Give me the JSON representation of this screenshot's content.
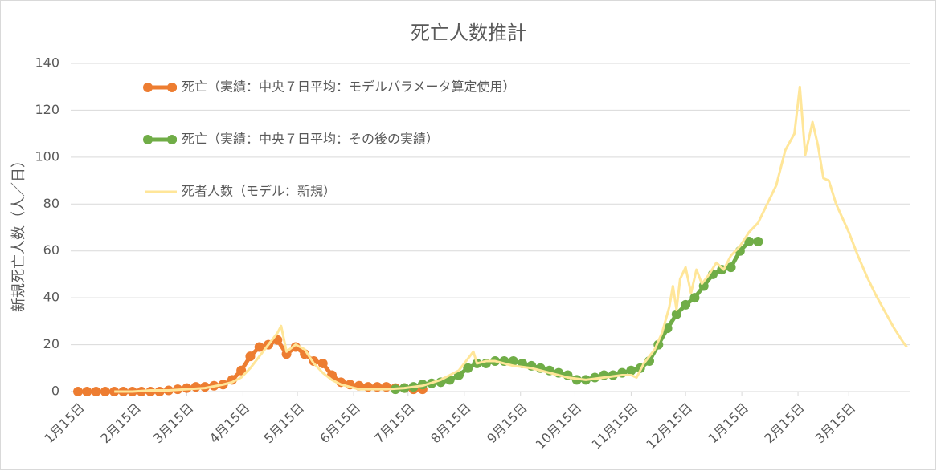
{
  "chart_data": {
    "type": "line",
    "title": "死亡人数推計",
    "y_label": "新規死亡人数（人／日）",
    "xlim": [
      -4,
      459
    ],
    "ylim": [
      0,
      140
    ],
    "yticks": [
      0,
      20,
      40,
      60,
      80,
      100,
      120,
      140
    ],
    "xticks": [
      {
        "value": 0,
        "label": "1月15日"
      },
      {
        "value": 31,
        "label": "2月15日"
      },
      {
        "value": 60,
        "label": "3月15日"
      },
      {
        "value": 91,
        "label": "4月15日"
      },
      {
        "value": 121,
        "label": "5月15日"
      },
      {
        "value": 152,
        "label": "6月15日"
      },
      {
        "value": 182,
        "label": "7月15日"
      },
      {
        "value": 213,
        "label": "8月15日"
      },
      {
        "value": 244,
        "label": "9月15日"
      },
      {
        "value": 274,
        "label": "10月15日"
      },
      {
        "value": 305,
        "label": "11月15日"
      },
      {
        "value": 335,
        "label": "12月15日"
      },
      {
        "value": 366,
        "label": "1月15日"
      },
      {
        "value": 397,
        "label": "2月15日"
      },
      {
        "value": 425,
        "label": "3月15日"
      }
    ],
    "grid": true,
    "legend": "upper left",
    "series": [
      {
        "name": "死亡（実績：中央７日平均：モデルパラメータ算定使用）",
        "color": "#ED7D31",
        "marker": true,
        "x": [
          0,
          5,
          10,
          15,
          20,
          25,
          30,
          35,
          40,
          45,
          50,
          55,
          60,
          65,
          70,
          75,
          80,
          85,
          90,
          95,
          100,
          105,
          110,
          115,
          120,
          125,
          130,
          135,
          140,
          145,
          150,
          155,
          160,
          165,
          170,
          175,
          180,
          185,
          190
        ],
        "values": [
          0,
          0,
          0,
          0,
          0,
          0,
          0,
          0,
          0,
          0,
          0.5,
          1,
          1.5,
          2,
          2,
          2.5,
          3,
          5,
          9,
          15,
          19,
          20,
          22,
          16,
          19,
          16,
          13,
          12,
          7,
          4,
          3,
          2.5,
          2,
          2,
          2,
          1.5,
          1.5,
          1,
          1
        ]
      },
      {
        "name": "死亡（実績：中央７日平均：その後の実績）",
        "color": "#70AD47",
        "marker": true,
        "x": [
          175,
          180,
          185,
          190,
          195,
          200,
          205,
          210,
          215,
          220,
          225,
          230,
          235,
          240,
          245,
          250,
          255,
          260,
          265,
          270,
          275,
          280,
          285,
          290,
          295,
          300,
          305,
          310,
          315,
          320,
          325,
          330,
          335,
          340,
          345,
          350,
          355,
          360,
          365,
          370,
          375
        ],
        "values": [
          1,
          1.5,
          2,
          3,
          3.5,
          4,
          5,
          7,
          10,
          12,
          12,
          13,
          13,
          13,
          12,
          11,
          10,
          9,
          8,
          7,
          5,
          5,
          6,
          7,
          7,
          8,
          9,
          10,
          13,
          20,
          27,
          33,
          37,
          40,
          45,
          50,
          52,
          53,
          60,
          64,
          64
        ]
      },
      {
        "name": "死者人数（モデル：新規）",
        "color": "#FFE699",
        "marker": false,
        "x": [
          20,
          30,
          40,
          50,
          60,
          70,
          80,
          85,
          90,
          95,
          100,
          105,
          110,
          112,
          115,
          120,
          125,
          130,
          135,
          140,
          145,
          150,
          155,
          160,
          170,
          180,
          190,
          200,
          205,
          210,
          215,
          218,
          220,
          225,
          230,
          240,
          250,
          260,
          270,
          280,
          290,
          300,
          305,
          308,
          312,
          318,
          322,
          326,
          328,
          330,
          332,
          335,
          338,
          341,
          344,
          348,
          352,
          356,
          360,
          365,
          370,
          375,
          380,
          385,
          390,
          395,
          398,
          401,
          405,
          408,
          411,
          414,
          418,
          425,
          430,
          435,
          440,
          445,
          450,
          455,
          457
        ],
        "values": [
          0,
          0,
          0.5,
          0.5,
          1,
          1.5,
          3,
          4,
          6,
          10,
          15,
          20,
          25,
          28,
          17,
          20,
          18,
          12,
          8,
          5,
          3,
          2,
          1,
          1,
          1,
          1.5,
          2.5,
          5,
          7,
          9,
          14,
          17,
          12,
          13,
          13,
          11,
          10,
          8,
          6,
          5,
          6,
          7,
          7,
          6,
          12,
          18,
          25,
          36,
          45,
          35,
          48,
          53,
          42,
          52,
          46,
          50,
          55,
          52,
          58,
          62,
          68,
          72,
          80,
          88,
          103,
          110,
          130,
          101,
          115,
          105,
          91,
          90,
          80,
          68,
          58,
          49,
          41,
          34,
          27,
          21,
          19
        ]
      }
    ]
  }
}
